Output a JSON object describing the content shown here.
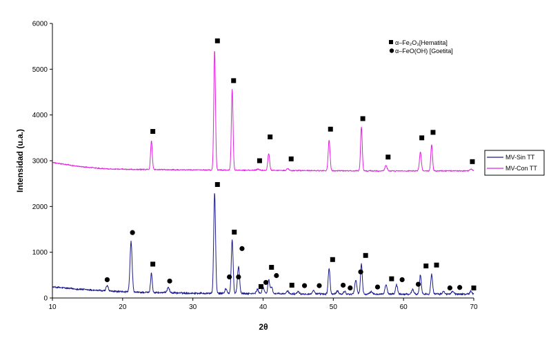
{
  "chart_data": {
    "type": "line",
    "xlabel": "2θ",
    "ylabel": "Intensidad (u.a.)",
    "xlim": [
      10,
      70
    ],
    "ylim": [
      0,
      6000
    ],
    "x_ticks": [
      10,
      20,
      30,
      40,
      50,
      60,
      70
    ],
    "y_ticks": [
      0,
      1000,
      2000,
      3000,
      4000,
      5000,
      6000
    ],
    "grid": false,
    "legend_placement": "right",
    "series": [
      {
        "name": "MV-Sin TT",
        "color": "#1a1a8c",
        "baseline": [
          [
            10,
            240
          ],
          [
            14,
            190
          ],
          [
            18,
            150
          ],
          [
            22,
            125
          ],
          [
            30,
            105
          ],
          [
            40,
            95
          ],
          [
            50,
            85
          ],
          [
            60,
            85
          ],
          [
            70,
            85
          ]
        ],
        "peaks": [
          [
            17.8,
            120,
            0.15
          ],
          [
            21.2,
            1100,
            0.15
          ],
          [
            24.1,
            420,
            0.12
          ],
          [
            26.5,
            130,
            0.15
          ],
          [
            33.1,
            2200,
            0.13
          ],
          [
            34.7,
            100,
            0.15
          ],
          [
            35.6,
            1170,
            0.13
          ],
          [
            36.5,
            590,
            0.15
          ],
          [
            39.2,
            90,
            0.15
          ],
          [
            40.0,
            140,
            0.15
          ],
          [
            40.8,
            300,
            0.13
          ],
          [
            41.2,
            150,
            0.15
          ],
          [
            43.5,
            60,
            0.15
          ],
          [
            45.0,
            60,
            0.15
          ],
          [
            47.2,
            80,
            0.15
          ],
          [
            49.4,
            560,
            0.13
          ],
          [
            50.6,
            70,
            0.15
          ],
          [
            51.6,
            60,
            0.15
          ],
          [
            53.2,
            300,
            0.15
          ],
          [
            54.0,
            650,
            0.13
          ],
          [
            55.4,
            60,
            0.15
          ],
          [
            57.5,
            200,
            0.15
          ],
          [
            59.0,
            200,
            0.15
          ],
          [
            61.3,
            100,
            0.15
          ],
          [
            62.4,
            420,
            0.13
          ],
          [
            64.0,
            440,
            0.13
          ],
          [
            65.7,
            60,
            0.15
          ],
          [
            67.0,
            60,
            0.15
          ],
          [
            69.6,
            60,
            0.15
          ]
        ],
        "noise": 35
      },
      {
        "name": "MV-Con TT",
        "color": "#e020e0",
        "baseline": [
          [
            10,
            2960
          ],
          [
            14,
            2870
          ],
          [
            18,
            2820
          ],
          [
            22,
            2810
          ],
          [
            30,
            2800
          ],
          [
            40,
            2790
          ],
          [
            50,
            2780
          ],
          [
            60,
            2775
          ],
          [
            70,
            2780
          ]
        ],
        "peaks": [
          [
            24.1,
            630,
            0.12
          ],
          [
            33.1,
            2620,
            0.12
          ],
          [
            35.6,
            1760,
            0.12
          ],
          [
            39.3,
            30,
            0.15
          ],
          [
            40.8,
            370,
            0.13
          ],
          [
            43.5,
            40,
            0.15
          ],
          [
            49.4,
            670,
            0.13
          ],
          [
            54.0,
            960,
            0.12
          ],
          [
            57.5,
            120,
            0.15
          ],
          [
            62.4,
            420,
            0.13
          ],
          [
            64.0,
            580,
            0.12
          ],
          [
            69.6,
            40,
            0.15
          ]
        ],
        "noise": 20
      }
    ],
    "annotations": [
      {
        "shape": "square",
        "x": 24.3,
        "y": 3640
      },
      {
        "shape": "square",
        "x": 33.5,
        "y": 5620
      },
      {
        "shape": "square",
        "x": 35.8,
        "y": 4750
      },
      {
        "shape": "square",
        "x": 39.5,
        "y": 3000
      },
      {
        "shape": "square",
        "x": 41.0,
        "y": 3520
      },
      {
        "shape": "square",
        "x": 44.0,
        "y": 3040
      },
      {
        "shape": "square",
        "x": 49.6,
        "y": 3690
      },
      {
        "shape": "square",
        "x": 54.2,
        "y": 3920
      },
      {
        "shape": "square",
        "x": 57.8,
        "y": 3080
      },
      {
        "shape": "square",
        "x": 62.6,
        "y": 3500
      },
      {
        "shape": "square",
        "x": 64.2,
        "y": 3620
      },
      {
        "shape": "square",
        "x": 69.8,
        "y": 2980
      },
      {
        "shape": "circle",
        "x": 17.8,
        "y": 400
      },
      {
        "shape": "circle",
        "x": 21.4,
        "y": 1430
      },
      {
        "shape": "square",
        "x": 24.3,
        "y": 740
      },
      {
        "shape": "circle",
        "x": 26.7,
        "y": 370
      },
      {
        "shape": "square",
        "x": 33.5,
        "y": 2480
      },
      {
        "shape": "circle",
        "x": 35.2,
        "y": 460
      },
      {
        "shape": "square",
        "x": 35.9,
        "y": 1440
      },
      {
        "shape": "circle",
        "x": 36.5,
        "y": 460
      },
      {
        "shape": "circle",
        "x": 37.0,
        "y": 1080
      },
      {
        "shape": "square",
        "x": 39.7,
        "y": 250
      },
      {
        "shape": "circle",
        "x": 40.4,
        "y": 340
      },
      {
        "shape": "square",
        "x": 41.2,
        "y": 670
      },
      {
        "shape": "circle",
        "x": 41.9,
        "y": 490
      },
      {
        "shape": "square",
        "x": 44.1,
        "y": 280
      },
      {
        "shape": "circle",
        "x": 45.9,
        "y": 270
      },
      {
        "shape": "circle",
        "x": 48.0,
        "y": 270
      },
      {
        "shape": "square",
        "x": 49.9,
        "y": 840
      },
      {
        "shape": "circle",
        "x": 51.4,
        "y": 280
      },
      {
        "shape": "circle",
        "x": 52.4,
        "y": 220
      },
      {
        "shape": "circle",
        "x": 53.9,
        "y": 570
      },
      {
        "shape": "square",
        "x": 54.6,
        "y": 930
      },
      {
        "shape": "circle",
        "x": 56.3,
        "y": 240
      },
      {
        "shape": "square",
        "x": 58.3,
        "y": 420
      },
      {
        "shape": "circle",
        "x": 59.8,
        "y": 400
      },
      {
        "shape": "circle",
        "x": 62.1,
        "y": 300
      },
      {
        "shape": "square",
        "x": 63.2,
        "y": 700
      },
      {
        "shape": "square",
        "x": 64.7,
        "y": 720
      },
      {
        "shape": "circle",
        "x": 66.6,
        "y": 220
      },
      {
        "shape": "circle",
        "x": 68.0,
        "y": 230
      },
      {
        "shape": "square",
        "x": 70.0,
        "y": 220
      }
    ],
    "marker_legend": {
      "square_label": "α–Fe₂O₃[Hematita]",
      "circle_label": "α–FeO(OH) [Goetita]"
    }
  }
}
